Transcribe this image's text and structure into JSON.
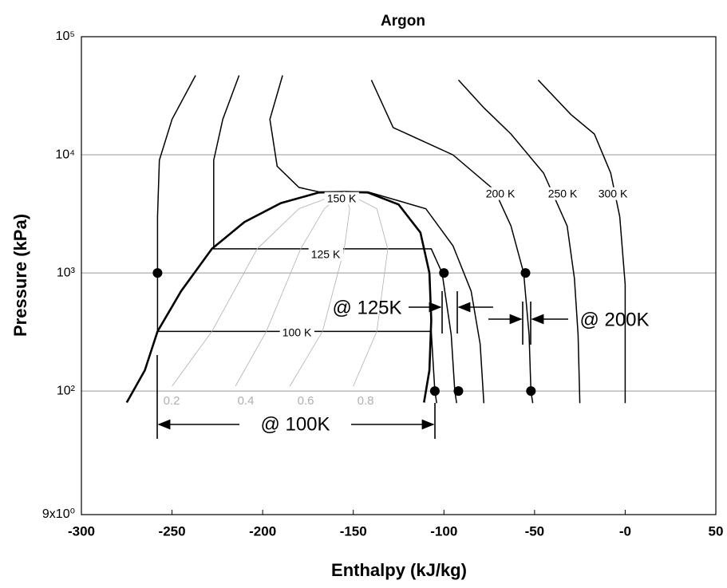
{
  "chart_data": {
    "type": "line",
    "title": "Argon",
    "xlabel": "Enthalpy (kJ/kg)",
    "ylabel": "Pressure (kPa)",
    "xlim": [
      -300,
      50
    ],
    "xticks": [
      -300,
      -250,
      -200,
      -150,
      -100,
      -50,
      {
        "value": 0,
        "label": "-0"
      },
      50
    ],
    "ylim": [
      9,
      100000
    ],
    "yscale": "log",
    "yticks": [
      {
        "value": 9,
        "label": "9x10⁰"
      },
      {
        "value": 100,
        "label": "10²"
      },
      {
        "value": 1000,
        "label": "10³"
      },
      {
        "value": 10000,
        "label": "10⁴"
      },
      {
        "value": 100000,
        "label": "10⁵"
      }
    ],
    "grid": true,
    "series": [
      {
        "color": "#000000",
        "line_width": 2.6,
        "x": [
          -275,
          -265,
          -258,
          -245,
          -228,
          -210,
          -190,
          -169,
          -155,
          -142,
          -125,
          -113,
          -108,
          -107,
          -108,
          -111
        ],
        "values": [
          80,
          150,
          320,
          700,
          1600,
          2700,
          3900,
          4800,
          4860,
          4800,
          3800,
          2200,
          1000,
          400,
          150,
          80
        ]
      },
      {
        "name": "100 K",
        "color": "#000000",
        "line_width": 1.5,
        "x": [
          -237,
          -250,
          -257,
          -258,
          -258,
          -107,
          -105,
          -104
        ],
        "values": [
          47000,
          20000,
          9000,
          3000,
          320,
          320,
          100,
          79
        ]
      },
      {
        "name": "125 K",
        "color": "#000000",
        "line_width": 1.5,
        "x": [
          -213,
          -222,
          -227,
          -227,
          -107,
          -101,
          -96,
          -94,
          -93
        ],
        "values": [
          47000,
          20000,
          9000,
          1600,
          1600,
          1000,
          300,
          100,
          79
        ]
      },
      {
        "name": "150 K",
        "color": "#000000",
        "line_width": 1.5,
        "x": [
          -189,
          -196,
          -192,
          -180,
          -169,
          -155,
          -142,
          -110,
          -95,
          -85,
          -80,
          -78
        ],
        "values": [
          47000,
          20000,
          8000,
          5300,
          4860,
          4860,
          4860,
          3500,
          1700,
          700,
          250,
          79
        ]
      },
      {
        "name": "200 K",
        "color": "#000000",
        "line_width": 1.5,
        "x": [
          -140,
          -128,
          -95,
          -72,
          -63,
          -56,
          -53,
          -52,
          -51
        ],
        "values": [
          43000,
          17000,
          10000,
          5000,
          2500,
          1000,
          300,
          100,
          79
        ]
      },
      {
        "name": "250 K",
        "color": "#000000",
        "line_width": 1.5,
        "x": [
          -92,
          -78,
          -63,
          -45,
          -32,
          -28,
          -26,
          -25
        ],
        "values": [
          43000,
          25000,
          15000,
          7000,
          2500,
          900,
          300,
          79
        ]
      },
      {
        "name": "300 K",
        "color": "#000000",
        "line_width": 1.5,
        "x": [
          -48,
          -30,
          -17,
          -8,
          -3,
          0,
          0
        ],
        "values": [
          43000,
          22000,
          15000,
          7000,
          3000,
          800,
          79
        ]
      },
      {
        "name": "0.2",
        "color": "#b0b0b0",
        "line_width": 0.8,
        "x": [
          -250,
          -228,
          -203,
          -180,
          -155
        ],
        "values": [
          110,
          320,
          1600,
          3500,
          4860
        ]
      },
      {
        "name": "0.4",
        "color": "#b0b0b0",
        "line_width": 0.8,
        "x": [
          -215,
          -198,
          -179,
          -166,
          -155
        ],
        "values": [
          110,
          320,
          1600,
          3500,
          4860
        ]
      },
      {
        "name": "0.6",
        "color": "#b0b0b0",
        "line_width": 0.8,
        "x": [
          -185,
          -167,
          -155,
          -152,
          -155
        ],
        "values": [
          110,
          320,
          1600,
          3500,
          4860
        ]
      },
      {
        "name": "0.8",
        "color": "#b0b0b0",
        "line_width": 0.8,
        "x": [
          -150,
          -137,
          -131,
          -137,
          -155
        ],
        "values": [
          110,
          320,
          1600,
          3500,
          4860
        ]
      }
    ],
    "points": {
      "color": "#000000",
      "x": [
        -258,
        -100,
        -55,
        -105,
        -92,
        -52
      ],
      "values": [
        1000,
        1000,
        1000,
        100,
        100,
        100
      ]
    },
    "annotations": [
      "@ 100K",
      "@ 125K",
      "@ 200K"
    ]
  }
}
